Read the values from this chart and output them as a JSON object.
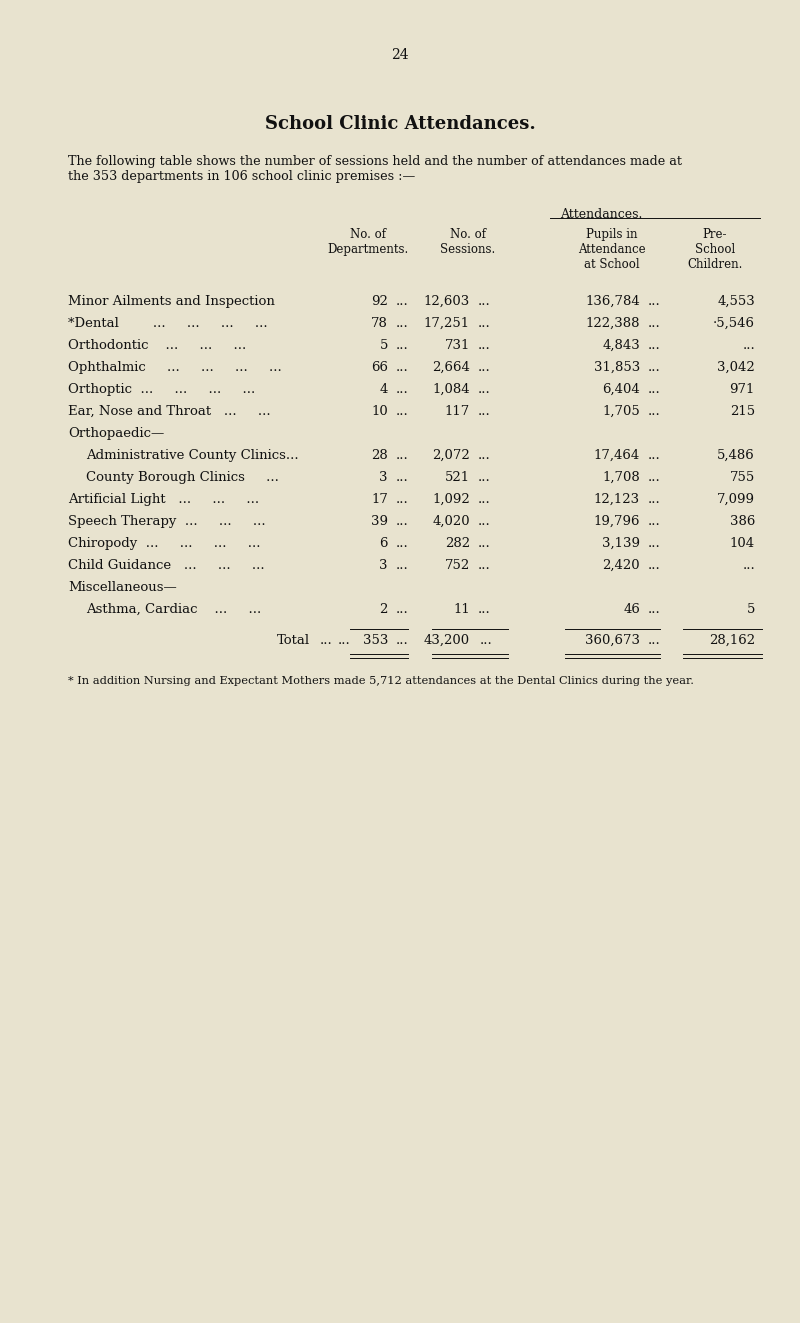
{
  "page_number": "24",
  "title_smallcaps": "School Clinic Attendances.",
  "intro_line1": "The following table shows the number of sessions held and the number of attendances made at",
  "intro_line2": "the 353 departments in 106 school clinic premises :—",
  "attendances_label": "Attendances.",
  "col1_header": "No. of\nDepartments.",
  "col2_header": "No. of\nSessions.",
  "col3_header": "Pupils in\nAttendance\nat School",
  "col4_header": "Pre-\nSchool\nChildren.",
  "rows": [
    {
      "label": "Minor Ailments and Inspection",
      "dots_after_label": "...",
      "indent": 0,
      "dept": "92",
      "sess": "12,603",
      "pupils": "136,784",
      "pre": "4,553",
      "d1": "...",
      "d2": "...",
      "d3": "..."
    },
    {
      "label": "*Dental        ...     ...     ...     ...",
      "dots_after_label": "",
      "indent": 0,
      "dept": "78",
      "sess": "17,251",
      "pupils": "122,388",
      "pre": "·5,546",
      "d1": "...",
      "d2": "...",
      "d3": "..."
    },
    {
      "label": "Orthodontic    ...     ...     ...",
      "dots_after_label": "",
      "indent": 0,
      "dept": "5",
      "sess": "731",
      "pupils": "4,843",
      "pre": "...",
      "d1": "...",
      "d2": "...",
      "d3": "..."
    },
    {
      "label": "Ophthalmic     ...     ...     ...     ...",
      "dots_after_label": "",
      "indent": 0,
      "dept": "66",
      "sess": "2,664",
      "pupils": "31,853",
      "pre": "3,042",
      "d1": "...",
      "d2": "...",
      "d3": "..."
    },
    {
      "label": "Orthoptic  ...     ...     ...     ...",
      "dots_after_label": "",
      "indent": 0,
      "dept": "4",
      "sess": "1,084",
      "pupils": "6,404",
      "pre": "971",
      "d1": "...",
      "d2": "...",
      "d3": "..."
    },
    {
      "label": "Ear, Nose and Throat   ...     ...",
      "dots_after_label": "",
      "indent": 0,
      "dept": "10",
      "sess": "117",
      "pupils": "1,705",
      "pre": "215",
      "d1": "...",
      "d2": "...",
      "d3": "..."
    },
    {
      "label": "Orthopaedic—",
      "dots_after_label": "",
      "indent": 0,
      "dept": "",
      "sess": "",
      "pupils": "",
      "pre": "",
      "d1": "",
      "d2": "",
      "d3": ""
    },
    {
      "label": "Administrative County Clinics...",
      "dots_after_label": "",
      "indent": 1,
      "dept": "28",
      "sess": "2,072",
      "pupils": "17,464",
      "pre": "5,486",
      "d1": "...",
      "d2": "...",
      "d3": "..."
    },
    {
      "label": "County Borough Clinics     ...",
      "dots_after_label": "",
      "indent": 1,
      "dept": "3",
      "sess": "521",
      "pupils": "1,708",
      "pre": "755",
      "d1": "...",
      "d2": "...",
      "d3": "..."
    },
    {
      "label": "Artificial Light   ...     ...     ...",
      "dots_after_label": "",
      "indent": 0,
      "dept": "17",
      "sess": "1,092",
      "pupils": "12,123",
      "pre": "7,099",
      "d1": "...",
      "d2": "...",
      "d3": "..."
    },
    {
      "label": "Speech Therapy  ...     ...     ...",
      "dots_after_label": "",
      "indent": 0,
      "dept": "39",
      "sess": "4,020",
      "pupils": "19,796",
      "pre": "386",
      "d1": "...",
      "d2": "...",
      "d3": "..."
    },
    {
      "label": "Chiropody  ...     ...     ...     ...",
      "dots_after_label": "",
      "indent": 0,
      "dept": "6",
      "sess": "282",
      "pupils": "3,139",
      "pre": "104",
      "d1": "...",
      "d2": "...",
      "d3": "..."
    },
    {
      "label": "Child Guidance   ...     ...     ...",
      "dots_after_label": "",
      "indent": 0,
      "dept": "3",
      "sess": "752",
      "pupils": "2,420",
      "pre": "...",
      "d1": "...",
      "d2": "...",
      "d3": "..."
    },
    {
      "label": "Miscellaneous—",
      "dots_after_label": "",
      "indent": 0,
      "dept": "",
      "sess": "",
      "pupils": "",
      "pre": "",
      "d1": "",
      "d2": "",
      "d3": ""
    },
    {
      "label": "Asthma, Cardiac    ...     ...",
      "dots_after_label": "",
      "indent": 1,
      "dept": "2",
      "sess": "11",
      "pupils": "46",
      "pre": "5",
      "d1": "...",
      "d2": "...",
      "d3": "..."
    }
  ],
  "total": {
    "dept": "353",
    "sess": "43,200",
    "pupils": "360,673",
    "pre": "28,162",
    "d1": "...",
    "d2": "...",
    "d3": "..."
  },
  "footnote": "* In addition Nursing and Expectant Mothers made 5,712 attendances at the Dental Clinics during the year.",
  "bg_color": "#e8e3cf",
  "text_color": "#111111"
}
